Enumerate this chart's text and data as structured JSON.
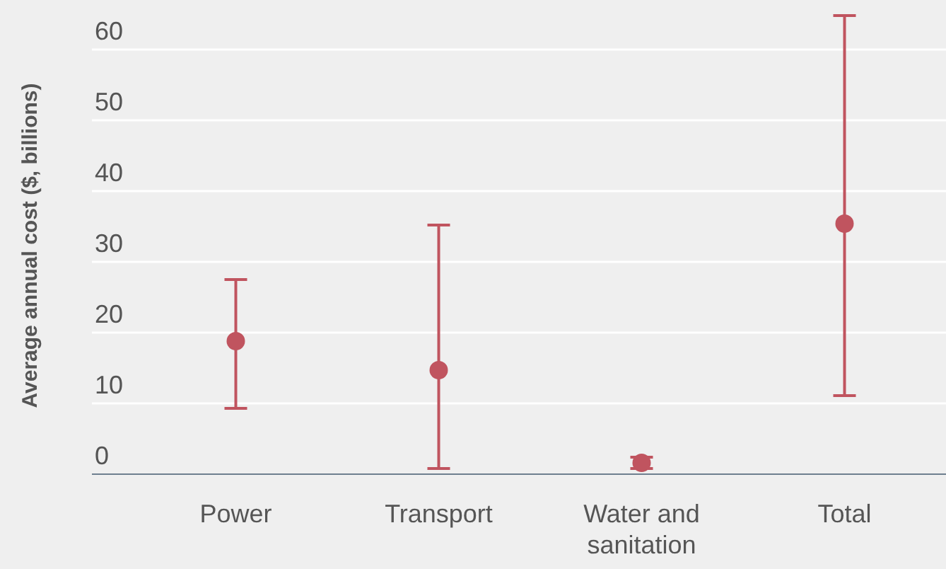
{
  "chart_data": {
    "type": "scatter",
    "ylabel": "Average annual cost ($, billions)",
    "categories": [
      "Power",
      "Transport",
      "Water and sanitation",
      "Total"
    ],
    "values": [
      18.8,
      14.7,
      1.6,
      35.4
    ],
    "errors": [
      [
        9.3,
        27.5
      ],
      [
        0.8,
        35.2
      ],
      [
        0.8,
        2.4
      ],
      [
        11.1,
        64.8
      ]
    ],
    "color": "#c0545f",
    "marker": "circle",
    "grid": "y",
    "ylim": [
      0,
      67
    ],
    "yticks": [
      0,
      10,
      20,
      30,
      40,
      50,
      60
    ]
  }
}
